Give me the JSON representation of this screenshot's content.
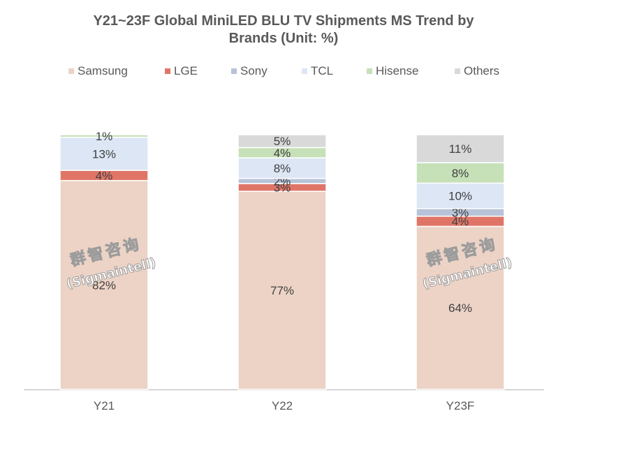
{
  "chart_data": {
    "type": "bar",
    "stacked": true,
    "title_lines": [
      "Y21~23F Global MiniLED BLU TV Shipments MS Trend by",
      "Brands (Unit:  %)"
    ],
    "categories": [
      "Y21",
      "Y22",
      "Y23F"
    ],
    "series": [
      {
        "name": "Samsung",
        "color": "#ecd3c6",
        "values": [
          82,
          77,
          64
        ],
        "labels": [
          "82%",
          "77%",
          "64%"
        ]
      },
      {
        "name": "LGE",
        "color": "#e07567",
        "values": [
          4,
          3,
          4
        ],
        "labels": [
          "4%",
          "3%",
          "4%"
        ]
      },
      {
        "name": "Sony",
        "color": "#b8c3d8",
        "values": [
          0,
          2,
          3
        ],
        "labels": [
          "",
          "2%",
          "3%"
        ]
      },
      {
        "name": "TCL",
        "color": "#dce6f4",
        "values": [
          13,
          8,
          10
        ],
        "labels": [
          "13%",
          "8%",
          "10%"
        ]
      },
      {
        "name": "Hisense",
        "color": "#c6e0b8",
        "values": [
          1,
          4,
          8
        ],
        "labels": [
          "1%",
          "4%",
          "8%"
        ]
      },
      {
        "name": "Others",
        "color": "#d9d9d9",
        "values": [
          0,
          5,
          11
        ],
        "labels": [
          "",
          "5%",
          "11%"
        ]
      }
    ],
    "ylim": [
      0,
      100
    ],
    "legend_position": "top",
    "grid": false
  },
  "watermark": {
    "line1": "群智咨询",
    "line2": "(Sigmaintell)",
    "bars": [
      "Y21",
      "Y23F"
    ]
  }
}
